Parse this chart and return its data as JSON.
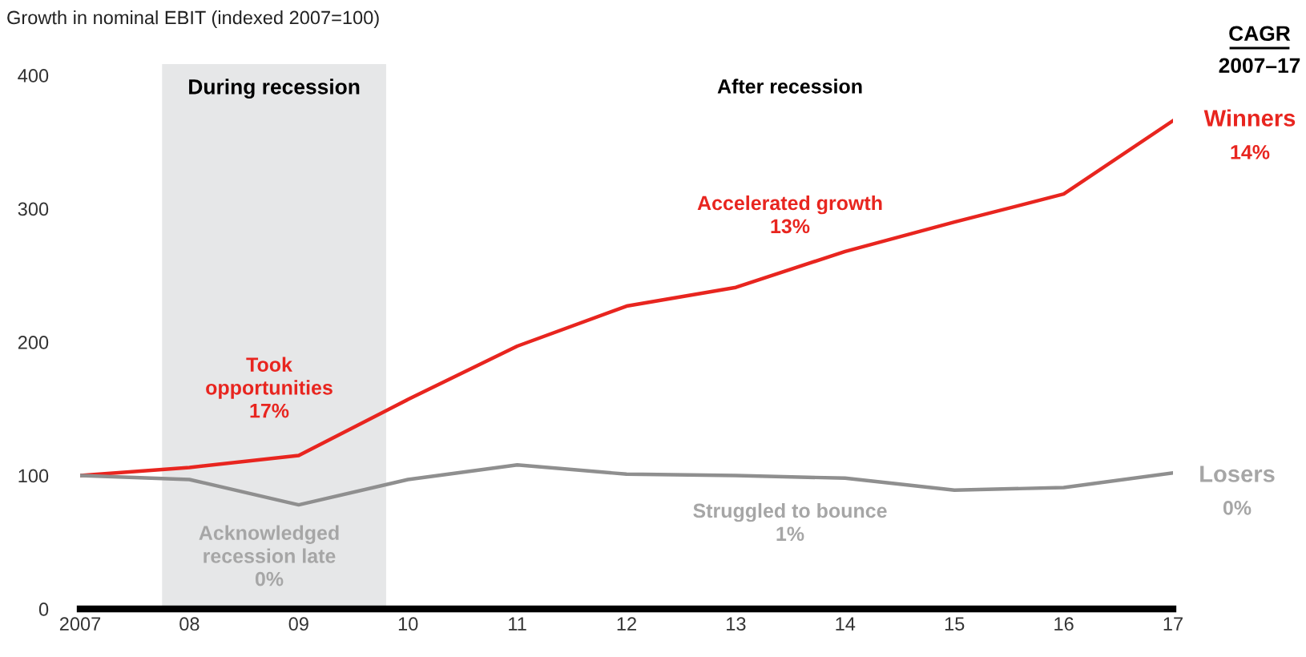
{
  "chart_data": {
    "type": "line",
    "title": "Growth in nominal EBIT (indexed 2007=100)",
    "x": [
      2007,
      2008,
      2009,
      2010,
      2011,
      2012,
      2013,
      2014,
      2015,
      2016,
      2017
    ],
    "series": [
      {
        "name": "Winners",
        "color": "#e8251f",
        "values": [
          100,
          106,
          115,
          157,
          197,
          227,
          241,
          268,
          290,
          311,
          366
        ]
      },
      {
        "name": "Losers",
        "color": "#8f8f8f",
        "values": [
          100,
          97,
          78,
          97,
          108,
          101,
          100,
          98,
          89,
          91,
          102
        ]
      }
    ],
    "xlim": [
      2007,
      2017
    ],
    "xticks": [
      {
        "value": 2007,
        "label": "2007"
      },
      {
        "value": 2008,
        "label": "08"
      },
      {
        "value": 2009,
        "label": "09"
      },
      {
        "value": 2010,
        "label": "10"
      },
      {
        "value": 2011,
        "label": "11"
      },
      {
        "value": 2012,
        "label": "12"
      },
      {
        "value": 2013,
        "label": "13"
      },
      {
        "value": 2014,
        "label": "14"
      },
      {
        "value": 2015,
        "label": "15"
      },
      {
        "value": 2016,
        "label": "16"
      },
      {
        "value": 2017,
        "label": "17"
      }
    ],
    "ylim": [
      0,
      400
    ],
    "yticks": [
      0,
      100,
      200,
      300,
      400
    ],
    "bands": [
      {
        "axis": "x",
        "from": 2007.75,
        "to": 2009.8,
        "label": "During recession",
        "color": "#e6e7e8"
      }
    ],
    "annotations": [
      "CAGR",
      "2007–17",
      "After recession",
      "Took\nopportunities\n17%",
      "Acknowledged\nrecession late\n0%",
      "Accelerated growth\n13%",
      "Struggled to bounce\n1%",
      "14%",
      "0%"
    ],
    "grid": false,
    "legend": false,
    "marker": "none",
    "line_style": "solid"
  }
}
